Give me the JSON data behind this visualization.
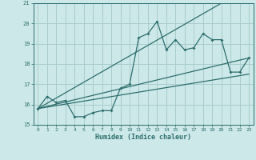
{
  "xlabel": "Humidex (Indice chaleur)",
  "xlim": [
    -0.5,
    23.5
  ],
  "ylim": [
    15,
    21
  ],
  "yticks": [
    15,
    16,
    17,
    18,
    19,
    20,
    21
  ],
  "xticks": [
    0,
    1,
    2,
    3,
    4,
    5,
    6,
    7,
    8,
    9,
    10,
    11,
    12,
    13,
    14,
    15,
    16,
    17,
    18,
    19,
    20,
    21,
    22,
    23
  ],
  "bg_color": "#cce8e8",
  "grid_color": "#aacccc",
  "line_color": "#2e6e6e",
  "series1_x": [
    0,
    1,
    2,
    3,
    4,
    5,
    6,
    7,
    8,
    9,
    10,
    11,
    12,
    13,
    14,
    15,
    16,
    17,
    18,
    19,
    20,
    21,
    22,
    23
  ],
  "series1_y": [
    15.8,
    16.4,
    16.1,
    16.2,
    15.4,
    15.4,
    15.6,
    15.7,
    15.7,
    16.8,
    17.0,
    19.3,
    19.5,
    20.1,
    18.7,
    19.2,
    18.7,
    18.8,
    19.5,
    19.2,
    19.2,
    17.6,
    17.6,
    18.3
  ],
  "series2_x": [
    0,
    20
  ],
  "series2_y": [
    15.8,
    21.0
  ],
  "series3_x": [
    0,
    23
  ],
  "series3_y": [
    15.8,
    18.3
  ],
  "series4_x": [
    0,
    23
  ],
  "series4_y": [
    15.8,
    17.5
  ]
}
